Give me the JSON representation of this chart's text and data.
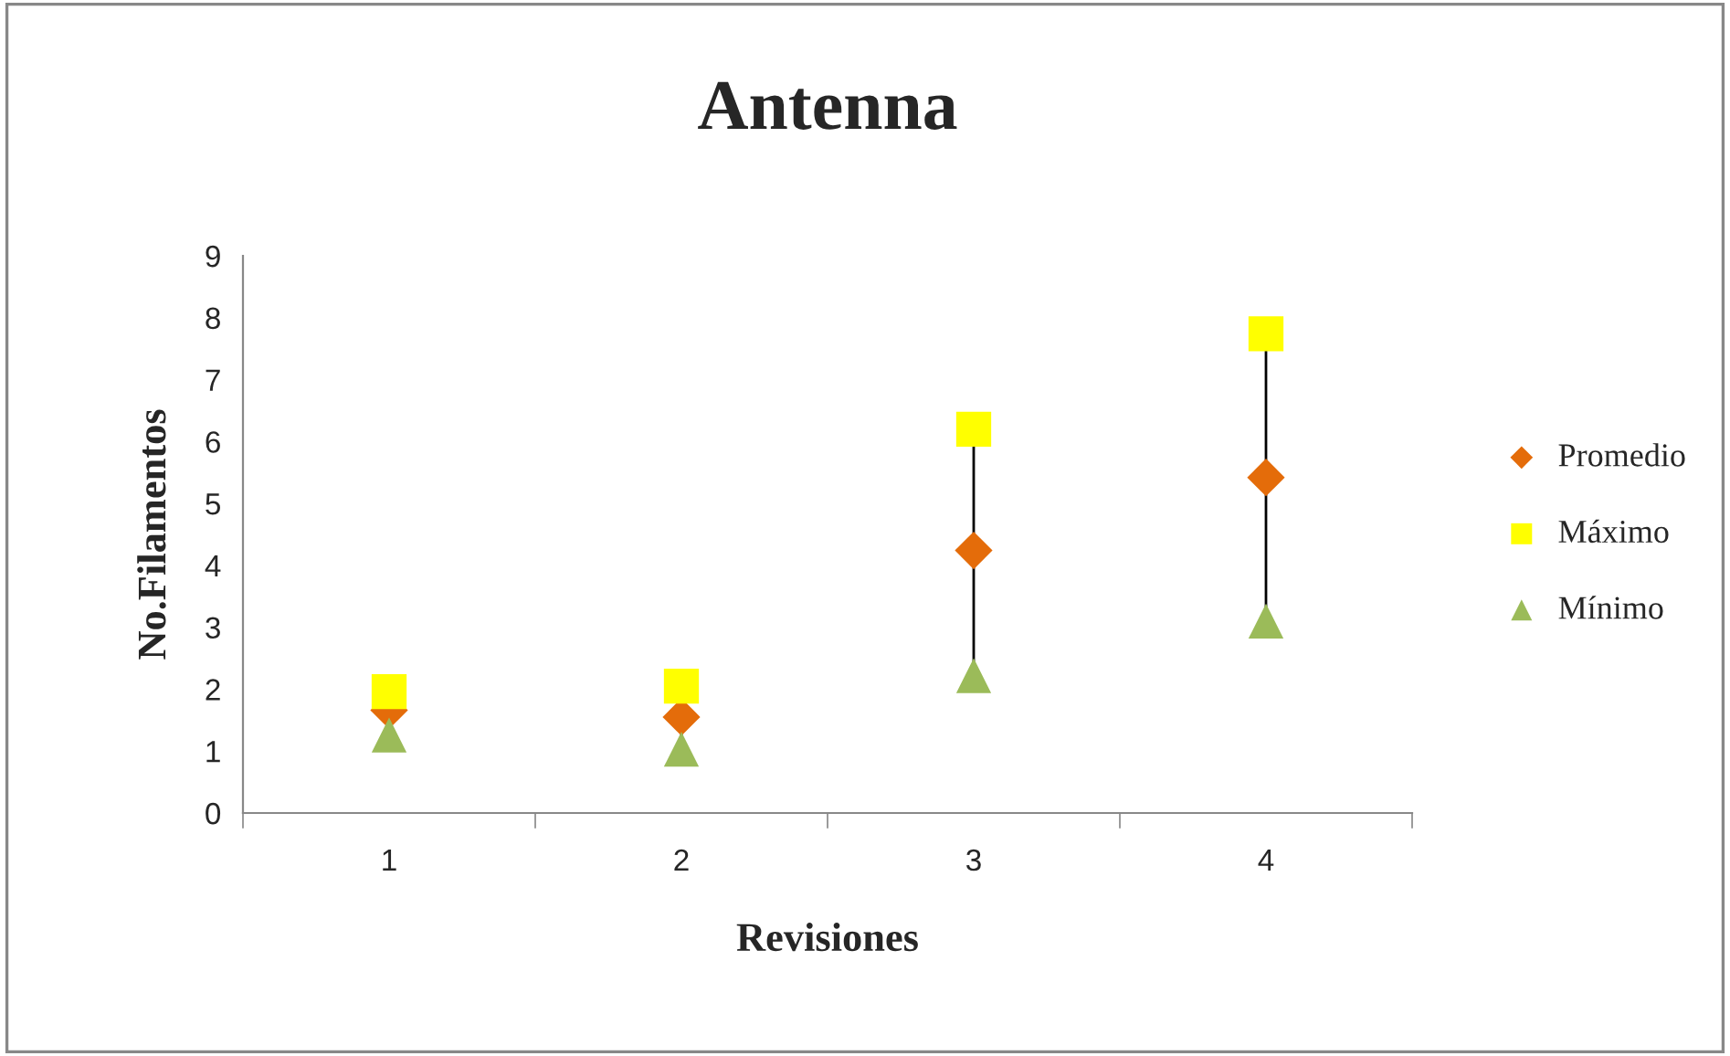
{
  "chart_data": {
    "type": "scatter",
    "title": "Antenna",
    "xlabel": "Revisiones",
    "ylabel": "No.Filamentos",
    "categories": [
      "1",
      "2",
      "3",
      "4"
    ],
    "series": [
      {
        "name": "Promedio",
        "color": "#e46c0a",
        "marker": "diamond",
        "values": [
          1.66,
          1.55,
          4.24,
          5.42
        ]
      },
      {
        "name": "Máximo",
        "color": "#ffff00",
        "marker": "square",
        "values": [
          1.96,
          2.05,
          6.2,
          7.74
        ]
      },
      {
        "name": "Mínimo",
        "color": "#9bbb59",
        "marker": "triangle",
        "values": [
          1.26,
          1.03,
          2.22,
          3.1
        ]
      }
    ],
    "ylim": [
      0,
      9
    ],
    "yticks": [
      0,
      1,
      2,
      3,
      4,
      5,
      6,
      7,
      8,
      9
    ],
    "grid": false,
    "legend": "right"
  }
}
